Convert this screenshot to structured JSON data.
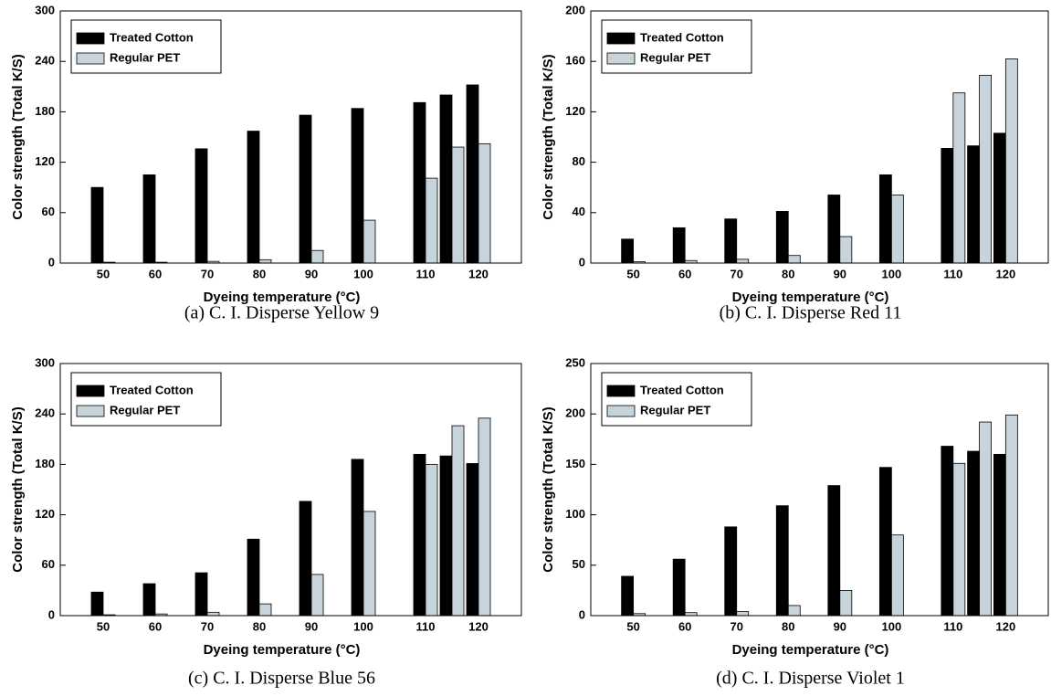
{
  "chart_data": [
    {
      "type": "bar",
      "title": "(a) C. I. Disperse Yellow 9",
      "xlabel": "Dyeing temperature (°C)",
      "ylabel": "Color strength (Total K/S)",
      "categories": [
        "50",
        "60",
        "70",
        "80",
        "90",
        "100",
        "110",
        null,
        "120"
      ],
      "series": [
        {
          "name": "Treated Cotton",
          "color": "#000000",
          "values": [
            90,
            105,
            136,
            157,
            176,
            184,
            191,
            200,
            212
          ]
        },
        {
          "name": "Regular PET",
          "color": "#c8d4dc",
          "values": [
            1,
            1,
            2,
            4,
            15,
            51,
            101,
            138,
            142
          ]
        }
      ],
      "ylim": [
        0,
        300
      ],
      "yticks": [
        0,
        60,
        120,
        180,
        240,
        300
      ],
      "legend": "upper left"
    },
    {
      "type": "bar",
      "title": "(b) C. I. Disperse Red 11",
      "xlabel": "Dyeing temperature (°C)",
      "ylabel": "Color strength (Total K/S)",
      "categories": [
        "50",
        "60",
        "70",
        "80",
        "90",
        "100",
        "110",
        null,
        "120"
      ],
      "series": [
        {
          "name": "Treated Cotton",
          "color": "#000000",
          "values": [
            19,
            28,
            35,
            41,
            54,
            70,
            91,
            93,
            103
          ]
        },
        {
          "name": "Regular PET",
          "color": "#c8d4dc",
          "values": [
            1,
            2,
            3,
            6,
            21,
            54,
            135,
            149,
            162
          ]
        }
      ],
      "ylim": [
        0,
        200
      ],
      "yticks": [
        0,
        40,
        80,
        120,
        160,
        200
      ],
      "legend": "upper left"
    },
    {
      "type": "bar",
      "title": "(c) C. I. Disperse Blue 56",
      "xlabel": "Dyeing temperature (°C)",
      "ylabel": "Color strength (Total K/S)",
      "categories": [
        "50",
        "60",
        "70",
        "80",
        "90",
        "100",
        "110",
        null,
        "120"
      ],
      "series": [
        {
          "name": "Treated Cotton",
          "color": "#000000",
          "values": [
            28,
            38,
            51,
            91,
            136,
            186,
            192,
            190,
            181
          ]
        },
        {
          "name": "Regular PET",
          "color": "#c8d4dc",
          "values": [
            1,
            2,
            4,
            14,
            49,
            124,
            180,
            226,
            235
          ]
        }
      ],
      "ylim": [
        0,
        300
      ],
      "yticks": [
        0,
        60,
        120,
        180,
        240,
        300
      ],
      "legend": "upper left"
    },
    {
      "type": "bar",
      "title": "(d) C. I. Disperse Violet 1",
      "xlabel": "Dyeing temperature (°C)",
      "ylabel": "Color strength (Total K/S)",
      "categories": [
        "50",
        "60",
        "70",
        "80",
        "90",
        "100",
        "110",
        null,
        "120"
      ],
      "series": [
        {
          "name": "Treated Cotton",
          "color": "#000000",
          "values": [
            39,
            56,
            88,
            109,
            129,
            147,
            168,
            163,
            160
          ]
        },
        {
          "name": "Regular PET",
          "color": "#c8d4dc",
          "values": [
            2,
            3,
            4,
            10,
            25,
            80,
            151,
            192,
            199
          ]
        }
      ],
      "ylim": [
        0,
        250
      ],
      "yticks": [
        0,
        50,
        100,
        150,
        200,
        250
      ],
      "legend": "upper left"
    }
  ]
}
